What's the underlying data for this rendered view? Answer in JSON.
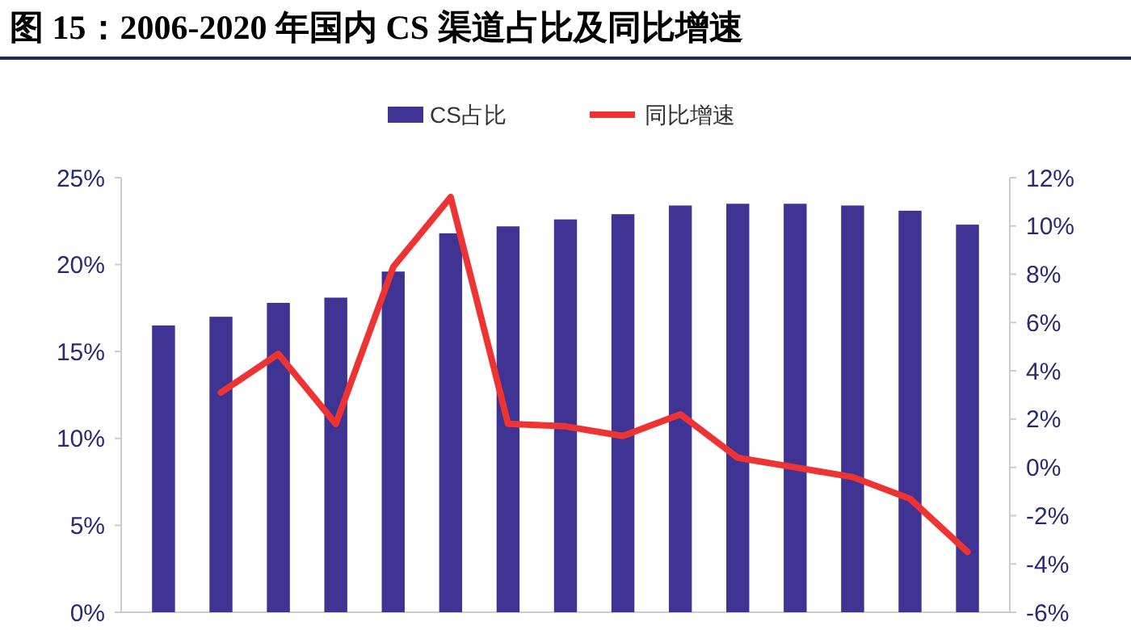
{
  "chart_data": {
    "type": "bar",
    "title": "图 15：2006-2020 年国内 CS 渠道占比及同比增速",
    "categories": [
      null,
      null,
      null,
      null,
      null,
      null,
      null,
      null,
      null,
      null,
      null,
      null,
      null,
      null,
      null
    ],
    "series": [
      {
        "name": "CS占比",
        "color": "#3f3494",
        "values": [
          16.5,
          17.0,
          17.8,
          18.1,
          19.6,
          21.8,
          22.2,
          22.6,
          22.9,
          23.4,
          23.5,
          23.5,
          23.4,
          23.1,
          22.3
        ]
      },
      {
        "name": "同比增速",
        "type": "line",
        "axis": "y2",
        "color": "#ee3333",
        "values": [
          null,
          3.1,
          4.7,
          1.8,
          8.3,
          11.2,
          1.8,
          1.7,
          1.3,
          2.2,
          0.4,
          0.0,
          -0.4,
          -1.3,
          -3.5
        ]
      }
    ],
    "ylim": [
      0,
      25
    ],
    "yticks": [
      {
        "value": 0,
        "label": "0%"
      },
      {
        "value": 5,
        "label": "5%"
      },
      {
        "value": 10,
        "label": "10%"
      },
      {
        "value": 15,
        "label": "15%"
      },
      {
        "value": 20,
        "label": "20%"
      },
      {
        "value": 25,
        "label": "25%"
      }
    ],
    "y2lim": [
      -6,
      12
    ],
    "y2ticks": [
      {
        "value": -6,
        "label": "-6%"
      },
      {
        "value": -4,
        "label": "-4%"
      },
      {
        "value": -2,
        "label": "-2%"
      },
      {
        "value": 0,
        "label": "0%"
      },
      {
        "value": 2,
        "label": "2%"
      },
      {
        "value": 4,
        "label": "4%"
      },
      {
        "value": 6,
        "label": "6%"
      },
      {
        "value": 8,
        "label": "8%"
      },
      {
        "value": 10,
        "label": "10%"
      },
      {
        "value": 12,
        "label": "12%"
      }
    ],
    "legend": "top",
    "grid": false,
    "marker": "none"
  }
}
